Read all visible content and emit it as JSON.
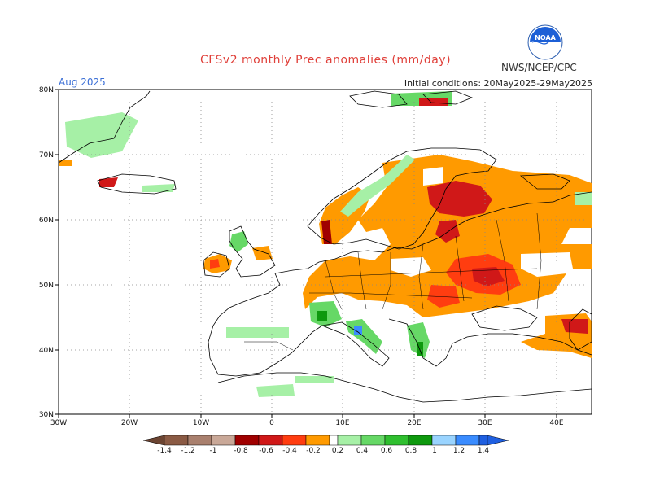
{
  "header": {
    "title": "CFSv2 monthly Prec anomalies (mm/day)",
    "valid_month": "Aug 2025",
    "initial_conditions": "Initial conditions: 20May2025-29May2025",
    "agency": "NWS/NCEP/CPC",
    "logo_text": "NOAA"
  },
  "axes": {
    "lon_labels": [
      "30W",
      "20W",
      "10W",
      "0",
      "10E",
      "20E",
      "30E",
      "40E"
    ],
    "lat_labels": [
      "80N",
      "70N",
      "60N",
      "50N",
      "40N",
      "30N"
    ]
  },
  "colorbar": {
    "labels": [
      "-1.4",
      "-1.2",
      "-1",
      "-0.8",
      "-0.6",
      "-0.4",
      "-0.2",
      "0.2",
      "0.4",
      "0.6",
      "0.8",
      "1",
      "1.2",
      "1.4"
    ],
    "colors": [
      "#8a5a44",
      "#a9806e",
      "#c9a898",
      "#a00000",
      "#d01818",
      "#ff3d10",
      "#ff9a00",
      "#ffffff",
      "#a6f0a6",
      "#66d866",
      "#2fbf2f",
      "#0e990e",
      "#9ad4ff",
      "#3a8cff",
      "#1f5fe0"
    ]
  },
  "map_regions": [
    {
      "name": "iceland-wet-south",
      "color": "#66d866"
    },
    {
      "name": "scandinavia-dry",
      "color": "#ff9a00"
    },
    {
      "name": "eastern-europe-dry",
      "color": "#ff9a00"
    },
    {
      "name": "finland-very-dry",
      "color": "#d01818"
    },
    {
      "name": "balkans-wet",
      "color": "#66d866"
    },
    {
      "name": "iberia-wet",
      "color": "#a6f0a6"
    }
  ]
}
